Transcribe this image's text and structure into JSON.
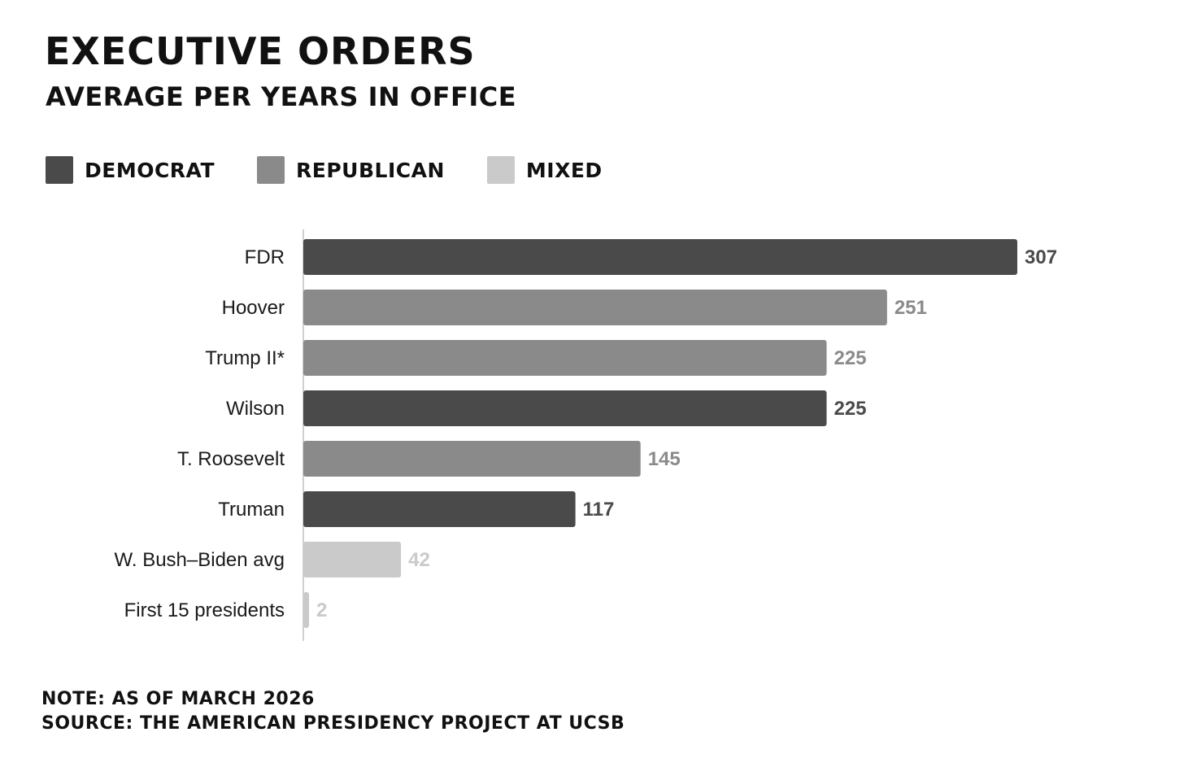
{
  "chart_data": {
    "type": "bar",
    "orientation": "horizontal",
    "title": "EXECUTIVE ORDERS",
    "subtitle": "AVERAGE PER YEARS IN OFFICE",
    "categories": [
      "FDR",
      "Hoover",
      "Trump II*",
      "Wilson",
      "T. Roosevelt",
      "Truman",
      "W. Bush–Biden avg",
      "First 15 presidents"
    ],
    "values": [
      307,
      251,
      225,
      225,
      145,
      117,
      42,
      2
    ],
    "party": [
      "Democrat",
      "Republican",
      "Republican",
      "Democrat",
      "Republican",
      "Democrat",
      "Mixed",
      "Mixed"
    ],
    "xlim": [
      0,
      307
    ],
    "legend": [
      {
        "name": "DEMOCRAT",
        "color": "#4a4a4a"
      },
      {
        "name": "REPUBLICAN",
        "color": "#8a8a8a"
      },
      {
        "name": "MIXED",
        "color": "#cacaca"
      }
    ],
    "legend_position": "top-left",
    "grid": false,
    "xlabel": "",
    "ylabel": ""
  },
  "colors": {
    "Democrat": "#4a4a4a",
    "Republican": "#8a8a8a",
    "Mixed": "#cacaca",
    "axis": "#d0d0d0"
  },
  "footnote": {
    "note": "NOTE: AS OF MARCH 2026",
    "source": "SOURCE: THE AMERICAN PRESIDENCY PROJECT AT UCSB"
  }
}
